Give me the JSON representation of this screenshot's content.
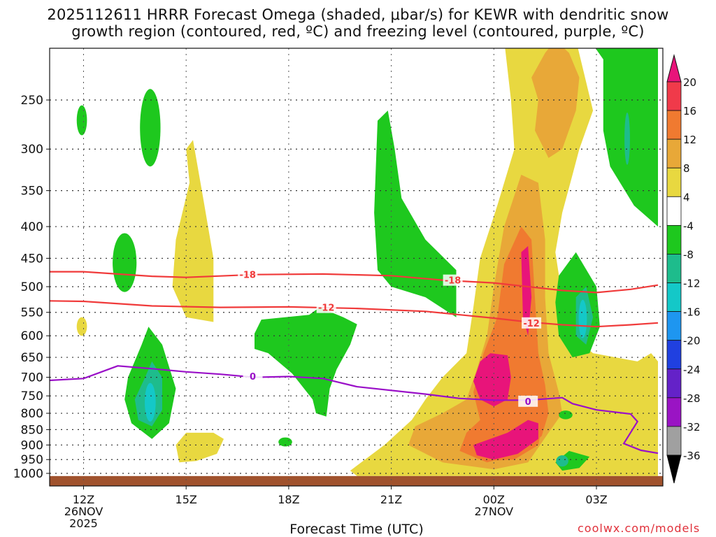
{
  "chart_data": {
    "type": "heatmap",
    "title_line1": "2025112611 HRRR Forecast Omega (shaded, μbar/s) for KEWR with dendritic snow",
    "title_line2": "growth region (contoured, red, ºC) and freezing level (contoured, purple, ºC)",
    "xlabel": "Forecast Time (UTC)",
    "credit": "coolwx.com/models",
    "x_ticks": [
      {
        "hour": 12,
        "label": "12Z",
        "sub1": "26NOV",
        "sub2": "2025"
      },
      {
        "hour": 15,
        "label": "15Z",
        "sub1": "",
        "sub2": ""
      },
      {
        "hour": 18,
        "label": "18Z",
        "sub1": "",
        "sub2": ""
      },
      {
        "hour": 21,
        "label": "21Z",
        "sub1": "",
        "sub2": ""
      },
      {
        "hour": 24,
        "label": "00Z",
        "sub1": "27NOV",
        "sub2": ""
      },
      {
        "hour": 27,
        "label": "03Z",
        "sub1": "",
        "sub2": ""
      }
    ],
    "x_range_hours": [
      11,
      28.8
    ],
    "y_ticks": [
      250,
      300,
      350,
      400,
      450,
      500,
      550,
      600,
      650,
      700,
      750,
      800,
      850,
      900,
      950,
      1000
    ],
    "y_range_hpa": [
      200,
      1030
    ],
    "colorbar": {
      "labels": [
        "20",
        "16",
        "12",
        "8",
        "4",
        "-4",
        "-8",
        "-12",
        "-16",
        "-20",
        "-24",
        "-28",
        "-32",
        "-36"
      ],
      "colors": [
        "#f03a4a",
        "#f07a30",
        "#e8a838",
        "#e8d840",
        "#ffffff",
        "#1ec81e",
        "#1ebc8c",
        "#14c8c8",
        "#1e96f0",
        "#2040e0",
        "#6422c8",
        "#9a14c4",
        "#a0a0a0"
      ],
      "top_color": "#e8147a",
      "bottom_color": "#000000"
    },
    "shade_colors": {
      "g": "#1ec81e",
      "t": "#1ebc8c",
      "c": "#14c8c8",
      "y": "#e8d840",
      "o": "#e8a838",
      "r": "#f07a30",
      "m": "#e8147a",
      "terrain": "#a0522d"
    },
    "contours": [
      {
        "label": "-18",
        "color": "#f03a3a",
        "points": [
          [
            11,
            473
          ],
          [
            12,
            473
          ],
          [
            14,
            481
          ],
          [
            15,
            483
          ],
          [
            17,
            478
          ],
          [
            19,
            477
          ],
          [
            21,
            480
          ],
          [
            22.5,
            488
          ],
          [
            24,
            493
          ],
          [
            25,
            500
          ],
          [
            26,
            507
          ],
          [
            27,
            511
          ],
          [
            28,
            505
          ],
          [
            28.8,
            497
          ]
        ],
        "label_at": [
          [
            16.8,
            478
          ],
          [
            22.8,
            488
          ]
        ]
      },
      {
        "label": "-12",
        "color": "#f03a3a",
        "points": [
          [
            11,
            527
          ],
          [
            12,
            528
          ],
          [
            14,
            537
          ],
          [
            16,
            540
          ],
          [
            18,
            539
          ],
          [
            20,
            542
          ],
          [
            22,
            548
          ],
          [
            24,
            562
          ],
          [
            25,
            570
          ],
          [
            26,
            576
          ],
          [
            27,
            580
          ],
          [
            28,
            576
          ],
          [
            28.8,
            572
          ]
        ],
        "label_at": [
          [
            19.1,
            540
          ],
          [
            25.1,
            572
          ]
        ]
      },
      {
        "label": "0",
        "color": "#9a10c8",
        "points": [
          [
            11,
            708
          ],
          [
            12,
            703
          ],
          [
            13,
            671
          ],
          [
            14,
            678
          ],
          [
            15,
            686
          ],
          [
            16,
            692
          ],
          [
            17,
            700
          ],
          [
            18,
            698
          ],
          [
            19,
            703
          ],
          [
            20,
            725
          ],
          [
            22,
            745
          ],
          [
            23,
            757
          ],
          [
            24,
            762
          ],
          [
            25,
            762
          ],
          [
            26,
            755
          ],
          [
            26.3,
            772
          ],
          [
            27,
            790
          ],
          [
            28,
            802
          ],
          [
            28.2,
            825
          ],
          [
            27.8,
            895
          ],
          [
            28.3,
            918
          ],
          [
            28.8,
            928
          ]
        ],
        "label_at": [
          [
            16.95,
            697
          ],
          [
            25,
            765
          ]
        ]
      }
    ]
  }
}
